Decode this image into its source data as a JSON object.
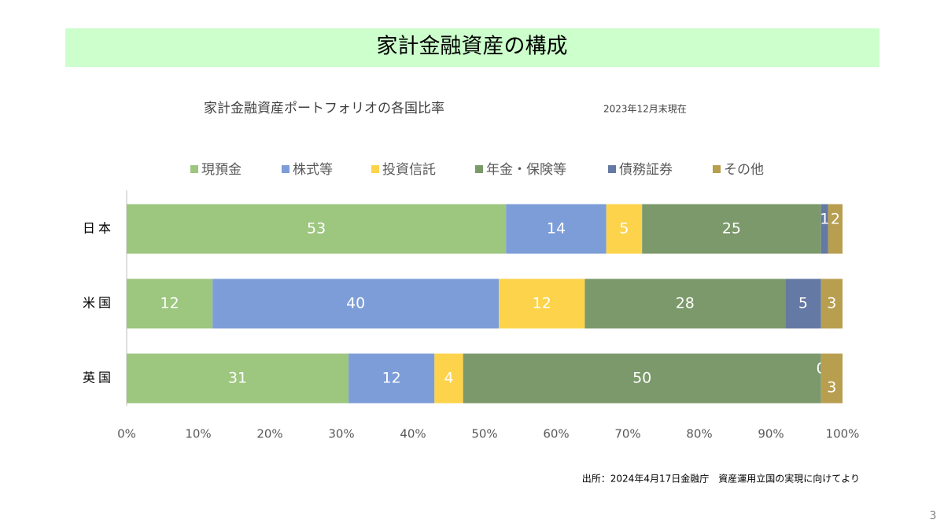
{
  "header": {
    "title": "家計金融資産の構成"
  },
  "chart_data": {
    "type": "stacked-bar-horizontal",
    "title": "家計金融資産ポートフォリオの各国比率",
    "subtitle": "2023年12月末現在",
    "categories": [
      "日本",
      "米国",
      "英国"
    ],
    "series": [
      {
        "name": "現預金",
        "color": "#9dc67f",
        "values": [
          53,
          12,
          31
        ]
      },
      {
        "name": "株式等",
        "color": "#7c9dd8",
        "values": [
          14,
          40,
          12
        ]
      },
      {
        "name": "投資信託",
        "color": "#fdd34c",
        "values": [
          5,
          12,
          4
        ]
      },
      {
        "name": "年金・保険等",
        "color": "#7b996b",
        "values": [
          25,
          28,
          50
        ]
      },
      {
        "name": "債務証券",
        "color": "#6479a3",
        "values": [
          1,
          5,
          0
        ]
      },
      {
        "name": "その他",
        "color": "#b89e4f",
        "values": [
          2,
          3,
          3
        ]
      }
    ],
    "xlim": [
      0,
      100
    ],
    "xticks": [
      {
        "value": 0,
        "label": "0%"
      },
      {
        "value": 10,
        "label": "10%"
      },
      {
        "value": 20,
        "label": "20%"
      },
      {
        "value": 30,
        "label": "30%"
      },
      {
        "value": 40,
        "label": "40%"
      },
      {
        "value": 50,
        "label": "50%"
      },
      {
        "value": 60,
        "label": "60%"
      },
      {
        "value": 70,
        "label": "70%"
      },
      {
        "value": 80,
        "label": "80%"
      },
      {
        "value": 90,
        "label": "90%"
      },
      {
        "value": 100,
        "label": "100%"
      }
    ],
    "grid": false,
    "legend": "top"
  },
  "footer": {
    "source": "出所：2024年4月17日金融庁　資産運用立国の実現に向けてより",
    "page": "3"
  }
}
